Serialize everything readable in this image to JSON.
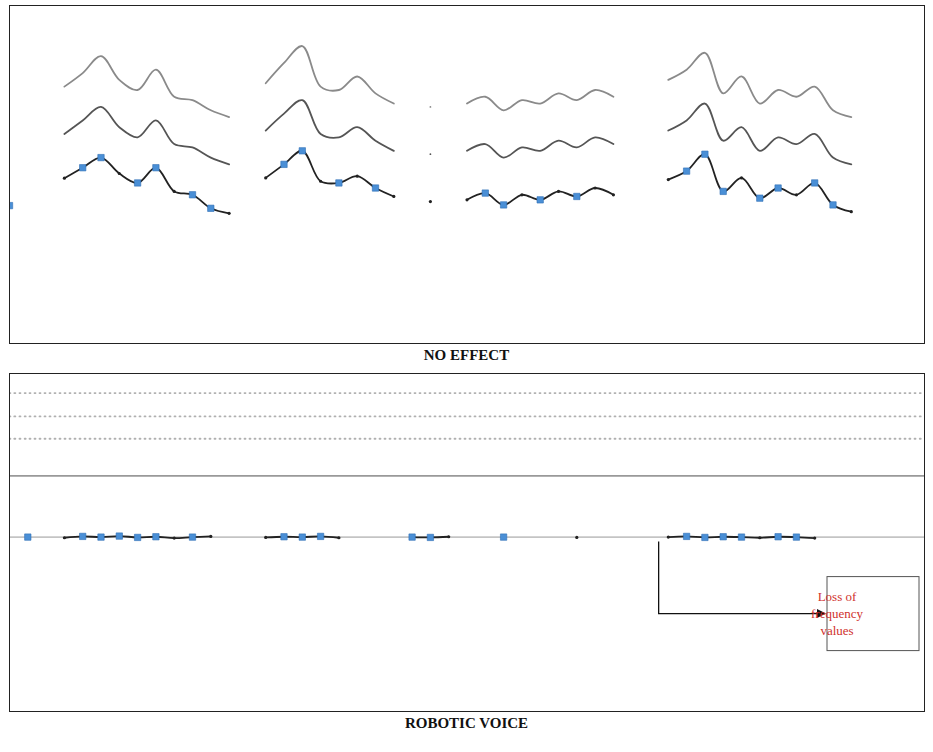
{
  "chart_data": [
    {
      "type": "line",
      "title": "NO EFFECT",
      "tick_labels": false,
      "xlim": [
        0,
        100
      ],
      "ylim": [
        0,
        100
      ],
      "x": [
        0,
        2,
        4,
        6,
        8,
        10,
        12,
        14,
        16,
        18,
        20,
        22,
        24,
        26,
        28,
        30,
        32,
        34,
        36,
        38,
        40,
        42,
        44,
        46,
        48,
        50,
        52,
        54,
        56,
        58,
        60,
        62,
        64,
        66,
        68,
        70,
        72,
        74,
        76,
        78,
        80,
        82,
        84,
        86,
        88,
        90,
        92,
        94,
        96,
        98,
        100
      ],
      "series": [
        {
          "type": "line",
          "color": "#8a8a8a",
          "line_style": "solid",
          "values": [
            null,
            null,
            null,
            76,
            80,
            85,
            78,
            75,
            81,
            73,
            72,
            69,
            67,
            null,
            77,
            83,
            88,
            76,
            75,
            79,
            74,
            71,
            null,
            70,
            null,
            71,
            73,
            69,
            72,
            71,
            74,
            72,
            75,
            73,
            null,
            null,
            78,
            81,
            86,
            74,
            79,
            71,
            75,
            73,
            76,
            69,
            67,
            null,
            null,
            null,
            null
          ]
        },
        {
          "type": "line",
          "color": "#555555",
          "line_style": "solid",
          "values": [
            null,
            null,
            null,
            62,
            66,
            70,
            64,
            61,
            66,
            59,
            58,
            55,
            53,
            null,
            63,
            68,
            72,
            62,
            61,
            64,
            60,
            57,
            null,
            56,
            null,
            57,
            59,
            55,
            58,
            57,
            60,
            58,
            61,
            59,
            null,
            null,
            63,
            66,
            71,
            60,
            64,
            57,
            61,
            59,
            62,
            55,
            53,
            null,
            null,
            null,
            null
          ]
        },
        {
          "type": "line",
          "color": "#222222",
          "line_style": "solid",
          "marker": "dot",
          "values": [
            40.8,
            null,
            null,
            48.9,
            52.0,
            55.0,
            50.3,
            47.5,
            52.0,
            45.0,
            44.0,
            40.0,
            38.5,
            null,
            49.0,
            53.0,
            57.0,
            48.0,
            47.5,
            49.5,
            46.0,
            43.5,
            null,
            42.0,
            null,
            42.5,
            44.5,
            41.0,
            44.0,
            42.5,
            45.0,
            43.5,
            46.0,
            44.0,
            null,
            null,
            48.5,
            51.0,
            56.0,
            45.0,
            49.0,
            43.0,
            46.0,
            44.0,
            47.5,
            41.0,
            39.0,
            null,
            null,
            null,
            null
          ]
        },
        {
          "type": "scatter",
          "color": "#4a8fd6",
          "marker": "square",
          "values": [
            40.8,
            null,
            null,
            null,
            52.0,
            55.0,
            null,
            47.5,
            52.0,
            null,
            44.0,
            40.0,
            null,
            null,
            null,
            53.0,
            57.0,
            null,
            47.5,
            null,
            46.0,
            null,
            null,
            null,
            null,
            null,
            44.5,
            41.0,
            null,
            42.5,
            null,
            43.5,
            null,
            null,
            null,
            null,
            null,
            51.0,
            56.0,
            45.0,
            null,
            43.0,
            46.0,
            null,
            47.5,
            41.0,
            null,
            null,
            null,
            null,
            null
          ]
        }
      ]
    },
    {
      "type": "line",
      "title": "ROBOTIC VOICE",
      "tick_labels": false,
      "xlim": [
        0,
        100
      ],
      "ylim": [
        0,
        100
      ],
      "x": [
        0,
        2,
        4,
        6,
        8,
        10,
        12,
        14,
        16,
        18,
        20,
        22,
        24,
        26,
        28,
        30,
        32,
        34,
        36,
        38,
        40,
        42,
        44,
        46,
        48,
        50,
        52,
        54,
        56,
        58,
        60,
        62,
        64,
        66,
        68,
        70,
        72,
        74,
        76,
        78,
        80,
        82,
        84,
        86,
        88,
        90,
        92,
        94,
        96,
        98,
        100
      ],
      "series": [
        {
          "type": "line",
          "color": "#b0b0b0",
          "line_style": "dotted",
          "values": [
            94.2,
            94.2,
            94.2,
            94.2,
            94.2,
            94.2,
            94.2,
            94.2,
            94.2,
            94.2,
            94.2,
            94.2,
            94.2,
            94.2,
            94.2,
            94.2,
            94.2,
            94.2,
            94.2,
            94.2,
            94.2,
            94.2,
            94.2,
            94.2,
            94.2,
            94.2,
            94.2,
            94.2,
            94.2,
            94.2,
            94.2,
            94.2,
            94.2,
            94.2,
            94.2,
            94.2,
            94.2,
            94.2,
            94.2,
            94.2,
            94.2,
            94.2,
            94.2,
            94.2,
            94.2,
            94.2,
            94.2,
            94.2,
            94.2,
            94.2,
            94.2
          ]
        },
        {
          "type": "line",
          "color": "#b0b0b0",
          "line_style": "dotted",
          "values": [
            87.3,
            87.3,
            87.3,
            87.3,
            87.3,
            87.3,
            87.3,
            87.3,
            87.3,
            87.3,
            87.3,
            87.3,
            87.3,
            87.3,
            87.3,
            87.3,
            87.3,
            87.3,
            87.3,
            87.3,
            87.3,
            87.3,
            87.3,
            87.3,
            87.3,
            87.3,
            87.3,
            87.3,
            87.3,
            87.3,
            87.3,
            87.3,
            87.3,
            87.3,
            87.3,
            87.3,
            87.3,
            87.3,
            87.3,
            87.3,
            87.3,
            87.3,
            87.3,
            87.3,
            87.3,
            87.3,
            87.3,
            87.3,
            87.3,
            87.3,
            87.3
          ]
        },
        {
          "type": "line",
          "color": "#b0b0b0",
          "line_style": "dotted",
          "values": [
            80.7,
            80.7,
            80.7,
            80.7,
            80.7,
            80.7,
            80.7,
            80.7,
            80.7,
            80.7,
            80.7,
            80.7,
            80.7,
            80.7,
            80.7,
            80.7,
            80.7,
            80.7,
            80.7,
            80.7,
            80.7,
            80.7,
            80.7,
            80.7,
            80.7,
            80.7,
            80.7,
            80.7,
            80.7,
            80.7,
            80.7,
            80.7,
            80.7,
            80.7,
            80.7,
            80.7,
            80.7,
            80.7,
            80.7,
            80.7,
            80.7,
            80.7,
            80.7,
            80.7,
            80.7,
            80.7,
            80.7,
            80.7,
            80.7,
            80.7,
            80.7
          ]
        },
        {
          "type": "line",
          "color": "#999999",
          "line_style": "solid",
          "values": [
            69.7,
            69.7,
            69.7,
            69.7,
            69.7,
            69.7,
            69.7,
            69.7,
            69.7,
            69.7,
            69.7,
            69.7,
            69.7,
            69.7,
            69.7,
            69.7,
            69.7,
            69.7,
            69.7,
            69.7,
            69.7,
            69.7,
            69.7,
            69.7,
            69.7,
            69.7,
            69.7,
            69.7,
            69.7,
            69.7,
            69.7,
            69.7,
            69.7,
            69.7,
            69.7,
            69.7,
            69.7,
            69.7,
            69.7,
            69.7,
            69.7,
            69.7,
            69.7,
            69.7,
            69.7,
            69.7,
            69.7,
            69.7,
            69.7,
            69.7,
            69.7
          ]
        },
        {
          "type": "line",
          "color": "#c4c4c4",
          "line_style": "solid",
          "values": [
            51.6,
            51.6,
            51.6,
            51.6,
            51.6,
            51.6,
            51.6,
            51.6,
            51.6,
            51.6,
            51.6,
            51.6,
            51.6,
            51.6,
            51.6,
            51.6,
            51.6,
            51.6,
            51.6,
            51.6,
            51.6,
            51.6,
            51.6,
            51.6,
            51.6,
            51.6,
            51.6,
            51.6,
            51.6,
            51.6,
            51.6,
            51.6,
            51.6,
            51.6,
            51.6,
            51.6,
            51.6,
            51.6,
            51.6,
            51.6,
            51.6,
            51.6,
            51.6,
            51.6,
            51.6,
            51.6,
            51.6,
            51.6,
            51.6,
            51.6,
            51.6
          ]
        },
        {
          "type": "line",
          "color": "#222222",
          "line_style": "solid",
          "marker": "dot",
          "values": [
            null,
            51.6,
            null,
            51.4,
            51.8,
            51.6,
            51.9,
            51.5,
            51.7,
            51.3,
            51.6,
            51.8,
            null,
            null,
            51.5,
            51.7,
            51.6,
            51.8,
            51.4,
            null,
            null,
            null,
            51.6,
            51.5,
            51.7,
            null,
            null,
            51.6,
            null,
            null,
            null,
            51.5,
            null,
            null,
            null,
            null,
            51.6,
            51.8,
            51.5,
            51.7,
            51.6,
            51.4,
            51.7,
            51.6,
            51.3,
            null,
            null,
            null,
            null,
            null,
            null
          ]
        },
        {
          "type": "scatter",
          "color": "#4a8fd6",
          "marker": "square",
          "values": [
            null,
            51.6,
            null,
            null,
            51.8,
            51.6,
            51.9,
            51.5,
            51.7,
            null,
            51.6,
            null,
            null,
            null,
            null,
            51.7,
            51.6,
            51.8,
            null,
            null,
            null,
            null,
            51.6,
            51.5,
            null,
            null,
            null,
            51.6,
            null,
            null,
            null,
            null,
            null,
            null,
            null,
            null,
            null,
            51.8,
            51.5,
            51.7,
            51.6,
            null,
            51.7,
            51.6,
            null,
            null,
            null,
            null,
            null,
            null,
            null
          ]
        }
      ],
      "annotations": [
        {
          "text": "Loss of frequency values",
          "x": 71,
          "y": 51.6,
          "color": "#d0312d"
        }
      ]
    }
  ]
}
